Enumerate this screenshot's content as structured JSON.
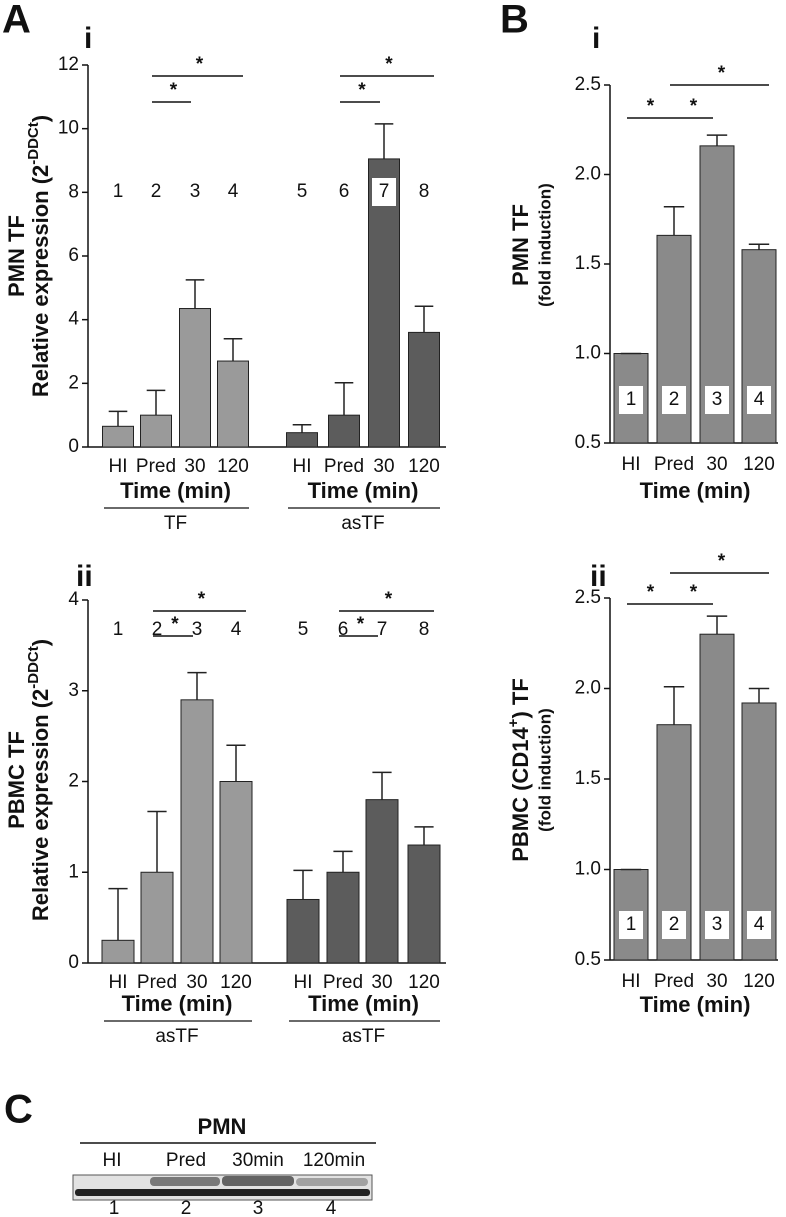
{
  "panel_labels": {
    "A": "A",
    "A_i": "i",
    "A_ii": "ii",
    "B": "B",
    "B_i": "i",
    "B_ii": "ii",
    "C": "C"
  },
  "chart_data": [
    {
      "type": "bar",
      "ylabel": "PMN TF",
      "ylabel_main": "Relative expression (2",
      "ylabel_sup": "-DDCt",
      "ylabel_end": ")",
      "categories": [
        "HI",
        "Pred",
        "30",
        "120"
      ],
      "xlabel": "Time (min)",
      "series": [
        {
          "name": "TF",
          "color": "#9a9a9a",
          "values": [
            0.65,
            1.0,
            4.35,
            2.7
          ],
          "errors": [
            0.47,
            0.78,
            0.9,
            0.7
          ]
        },
        {
          "name": "asTF",
          "color": "#5c5c5c",
          "values": [
            0.45,
            1.0,
            9.05,
            3.6
          ],
          "errors": [
            0.25,
            1.02,
            1.1,
            0.82
          ]
        }
      ],
      "ylim": [
        0,
        12
      ],
      "yticks": [
        0,
        2,
        4,
        6,
        8,
        10,
        12
      ],
      "bar_numbers": [
        "1",
        "2",
        "3",
        "4",
        "5",
        "6",
        "7",
        "8"
      ],
      "significance": [
        "*",
        "*",
        "*",
        "*"
      ]
    },
    {
      "type": "bar",
      "ylabel": "PBMC TF",
      "ylabel_main": "Relative expression (2",
      "ylabel_sup": "-DDCt",
      "ylabel_end": ")",
      "categories": [
        "HI",
        "Pred",
        "30",
        "120"
      ],
      "xlabel": "Time (min)",
      "series": [
        {
          "name": "asTF",
          "color": "#9a9a9a",
          "values": [
            0.25,
            1.0,
            2.9,
            2.0
          ],
          "errors": [
            0.57,
            0.67,
            0.3,
            0.4
          ]
        },
        {
          "name": "asTF",
          "color": "#5c5c5c",
          "values": [
            0.7,
            1.0,
            1.8,
            1.3
          ],
          "errors": [
            0.32,
            0.23,
            0.3,
            0.2
          ]
        }
      ],
      "ylim": [
        0,
        4
      ],
      "yticks": [
        0,
        1,
        2,
        3,
        4
      ],
      "bar_numbers": [
        "1",
        "2",
        "3",
        "4",
        "5",
        "6",
        "7",
        "8"
      ],
      "significance": [
        "*",
        "*",
        "*",
        "*"
      ]
    },
    {
      "type": "bar",
      "ylabel": "PMN TF",
      "ylabel_sub": "(fold induction)",
      "categories": [
        "HI",
        "Pred",
        "30",
        "120"
      ],
      "xlabel": "Time (min)",
      "color": "#8a8a8a",
      "values": [
        1.0,
        1.66,
        2.16,
        1.58
      ],
      "errors": [
        0,
        0.16,
        0.06,
        0.03
      ],
      "ylim": [
        0.5,
        2.5
      ],
      "yticks": [
        0.5,
        {
          "value": 1,
          "label": "1.0"
        },
        1.5,
        {
          "value": 2,
          "label": "2.0"
        },
        2.5
      ],
      "bar_numbers": [
        "1",
        "2",
        "3",
        "4"
      ],
      "significance": [
        "*",
        "*",
        "*"
      ]
    },
    {
      "type": "bar",
      "ylabel": "PBMC (CD14",
      "ylabel_sup": "+",
      "ylabel_end": ") TF",
      "ylabel_sub": "(fold induction)",
      "categories": [
        "HI",
        "Pred",
        "30",
        "120"
      ],
      "xlabel": "Time (min)",
      "color": "#8a8a8a",
      "values": [
        1.0,
        1.8,
        2.3,
        1.92
      ],
      "errors": [
        0,
        0.21,
        0.1,
        0.08
      ],
      "ylim": [
        0.5,
        2.5
      ],
      "yticks": [
        0.5,
        {
          "value": 1,
          "label": "1.0"
        },
        1.5,
        {
          "value": 2,
          "label": "2.0"
        },
        2.5
      ],
      "bar_numbers": [
        "1",
        "2",
        "3",
        "4"
      ],
      "significance": [
        "*",
        "*",
        "*"
      ]
    }
  ],
  "blot": {
    "title": "PMN",
    "lanes": [
      "HI",
      "Pred",
      "30min",
      "120min"
    ],
    "lane_numbers": [
      "1",
      "2",
      "3",
      "4"
    ]
  }
}
